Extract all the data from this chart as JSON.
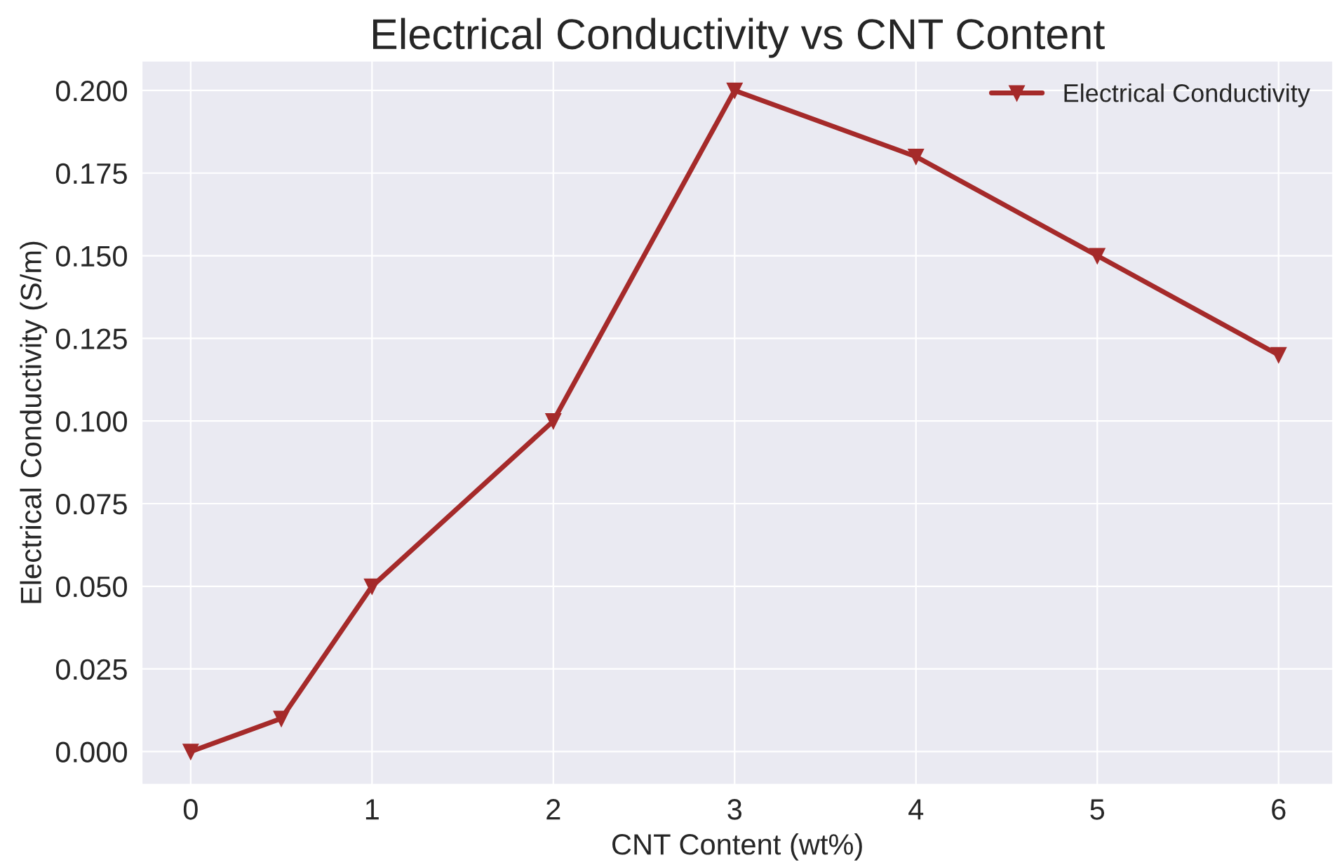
{
  "chart_data": {
    "type": "line",
    "title": "Electrical Conductivity vs CNT Content",
    "xlabel": "CNT Content (wt%)",
    "ylabel": "Electrical Conductivity (S/m)",
    "x": [
      0,
      0.5,
      1,
      2,
      3,
      4,
      5,
      6
    ],
    "series": [
      {
        "name": "Electrical Conductivity",
        "color": "#a52a2a",
        "values": [
          0,
          0.01,
          0.05,
          0.1,
          0.2,
          0.18,
          0.15,
          0.12
        ]
      }
    ],
    "xlim": [
      -0.27,
      6.3
    ],
    "xticks": [
      0,
      1,
      2,
      3,
      4,
      5,
      6
    ],
    "ylim": [
      -0.01,
      0.209
    ],
    "yticks": [
      {
        "value": 0,
        "label": "0.000"
      },
      {
        "value": 0.025,
        "label": "0.025"
      },
      {
        "value": 0.05,
        "label": "0.050"
      },
      {
        "value": 0.075,
        "label": "0.075"
      },
      {
        "value": 0.1,
        "label": "0.100"
      },
      {
        "value": 0.125,
        "label": "0.125"
      },
      {
        "value": 0.15,
        "label": "0.150"
      },
      {
        "value": 0.175,
        "label": "0.175"
      },
      {
        "value": 0.2,
        "label": "0.200"
      }
    ],
    "grid": true,
    "legend": "top right",
    "marker": "triangle",
    "line_style": "solid"
  }
}
